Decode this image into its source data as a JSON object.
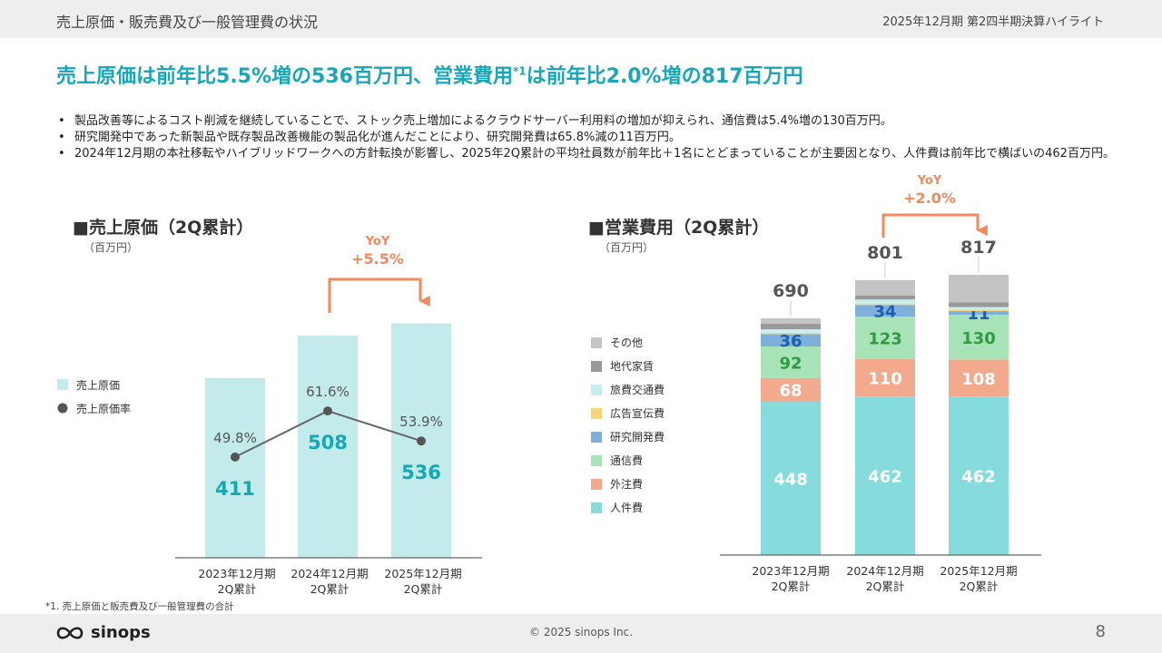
{
  "header": {
    "section": "売上原価・販売費及び一般管理費の状況",
    "period": "2025年12月期 第2四半期決算ハイライト"
  },
  "headline": {
    "part1": "売上原価は前年比5.5%増の536百万円、営業費用",
    "sup": "*1",
    "part2": "は前年比2.0%増の817百万円"
  },
  "bullets": [
    "製品改善等によるコスト削減を継続していることで、ストック売上増加によるクラウドサーバー利用料の増加が抑えられ、通信費は5.4%増の130百万円。",
    "研究開発中であった新製品や既存製品改善機能の製品化が進んだことにより、研究開発費は65.8%減の11百万円。",
    "2024年12月期の本社移転やハイブリッドワークへの方針転換が影響し、2025年2Q累計の平均社員数が前年比＋1名にとどまっていることが主要因となり、人件費は前年比で横ばいの462百万円。"
  ],
  "charts": {
    "cogs": {
      "title": "■売上原価（2Q累計）",
      "unit": "（百万円）",
      "yoy_label": "YoY",
      "yoy_value": "+5.5%"
    },
    "opex": {
      "title": "■営業費用（2Q累計）",
      "unit": "（百万円）",
      "yoy_label": "YoY",
      "yoy_value": "+2.0%"
    }
  },
  "chart_data": [
    {
      "type": "bar",
      "title": "売上原価（2Q累計）",
      "ylabel": "百万円",
      "categories": [
        [
          "2023年12月期",
          "2Q累計"
        ],
        [
          "2024年12月期",
          "2Q累計"
        ],
        [
          "2025年12月期",
          "2Q累計"
        ]
      ],
      "series": [
        {
          "name": "売上原価",
          "type": "bar",
          "color": "#c3ebeb",
          "label_color": "#14a9b3",
          "values": [
            411,
            508,
            536
          ]
        },
        {
          "name": "売上原価率",
          "type": "line",
          "color": "#555555",
          "values": [
            49.8,
            61.6,
            53.9
          ],
          "labels": [
            "49.8%",
            "61.6%",
            "53.9%"
          ]
        }
      ],
      "ylim": [
        0,
        560
      ],
      "rate_ylim": [
        0,
        100
      ],
      "legend": "left",
      "grid": false,
      "annotation": {
        "from": 1,
        "to": 2,
        "text": [
          "YoY",
          "+5.5%"
        ],
        "color": "#f08a5d"
      }
    },
    {
      "type": "bar",
      "stacked": true,
      "title": "営業費用（2Q累計）",
      "ylabel": "百万円",
      "categories": [
        [
          "2023年12月期",
          "2Q累計"
        ],
        [
          "2024年12月期",
          "2Q累計"
        ],
        [
          "2025年12月期",
          "2Q累計"
        ]
      ],
      "totals": [
        690,
        801,
        817
      ],
      "series": [
        {
          "name": "人件費",
          "color": "#86dcdc",
          "label_color": "#ffffff",
          "values": [
            448,
            462,
            462
          ],
          "show_labels": true
        },
        {
          "name": "外注費",
          "color": "#f2a98c",
          "label_color": "#ffffff",
          "values": [
            68,
            110,
            108
          ],
          "show_labels": true
        },
        {
          "name": "通信費",
          "color": "#a8e3b7",
          "label_color": "#2f9a43",
          "values": [
            92,
            123,
            130
          ],
          "show_labels": true
        },
        {
          "name": "研究開発費",
          "color": "#7fb0db",
          "label_color": "#1e5fae",
          "values": [
            36,
            34,
            11
          ],
          "show_labels": true
        },
        {
          "name": "広告宣伝費",
          "color": "#f5d77a",
          "values": [
            4,
            4,
            4
          ],
          "show_labels": false
        },
        {
          "name": "旅費交通費",
          "color": "#c6eeec",
          "values": [
            10,
            12,
            8
          ],
          "show_labels": false
        },
        {
          "name": "地代家賃",
          "color": "#999999",
          "values": [
            16,
            12,
            14
          ],
          "show_labels": false
        },
        {
          "name": "その他",
          "color": "#c4c4c4",
          "values": [
            16,
            44,
            80
          ],
          "show_labels": false
        }
      ],
      "ylim": [
        0,
        900
      ],
      "legend": "left",
      "grid": false,
      "annotation": {
        "from": 1,
        "to": 2,
        "text": [
          "YoY",
          "+2.0%"
        ],
        "color": "#f08a5d"
      }
    }
  ],
  "footnote": "*1. 売上原価と販売費及び一般管理費の合計",
  "footer": {
    "logo_text": "sinops",
    "copyright": "© 2025 sinops Inc.",
    "page": "8"
  }
}
